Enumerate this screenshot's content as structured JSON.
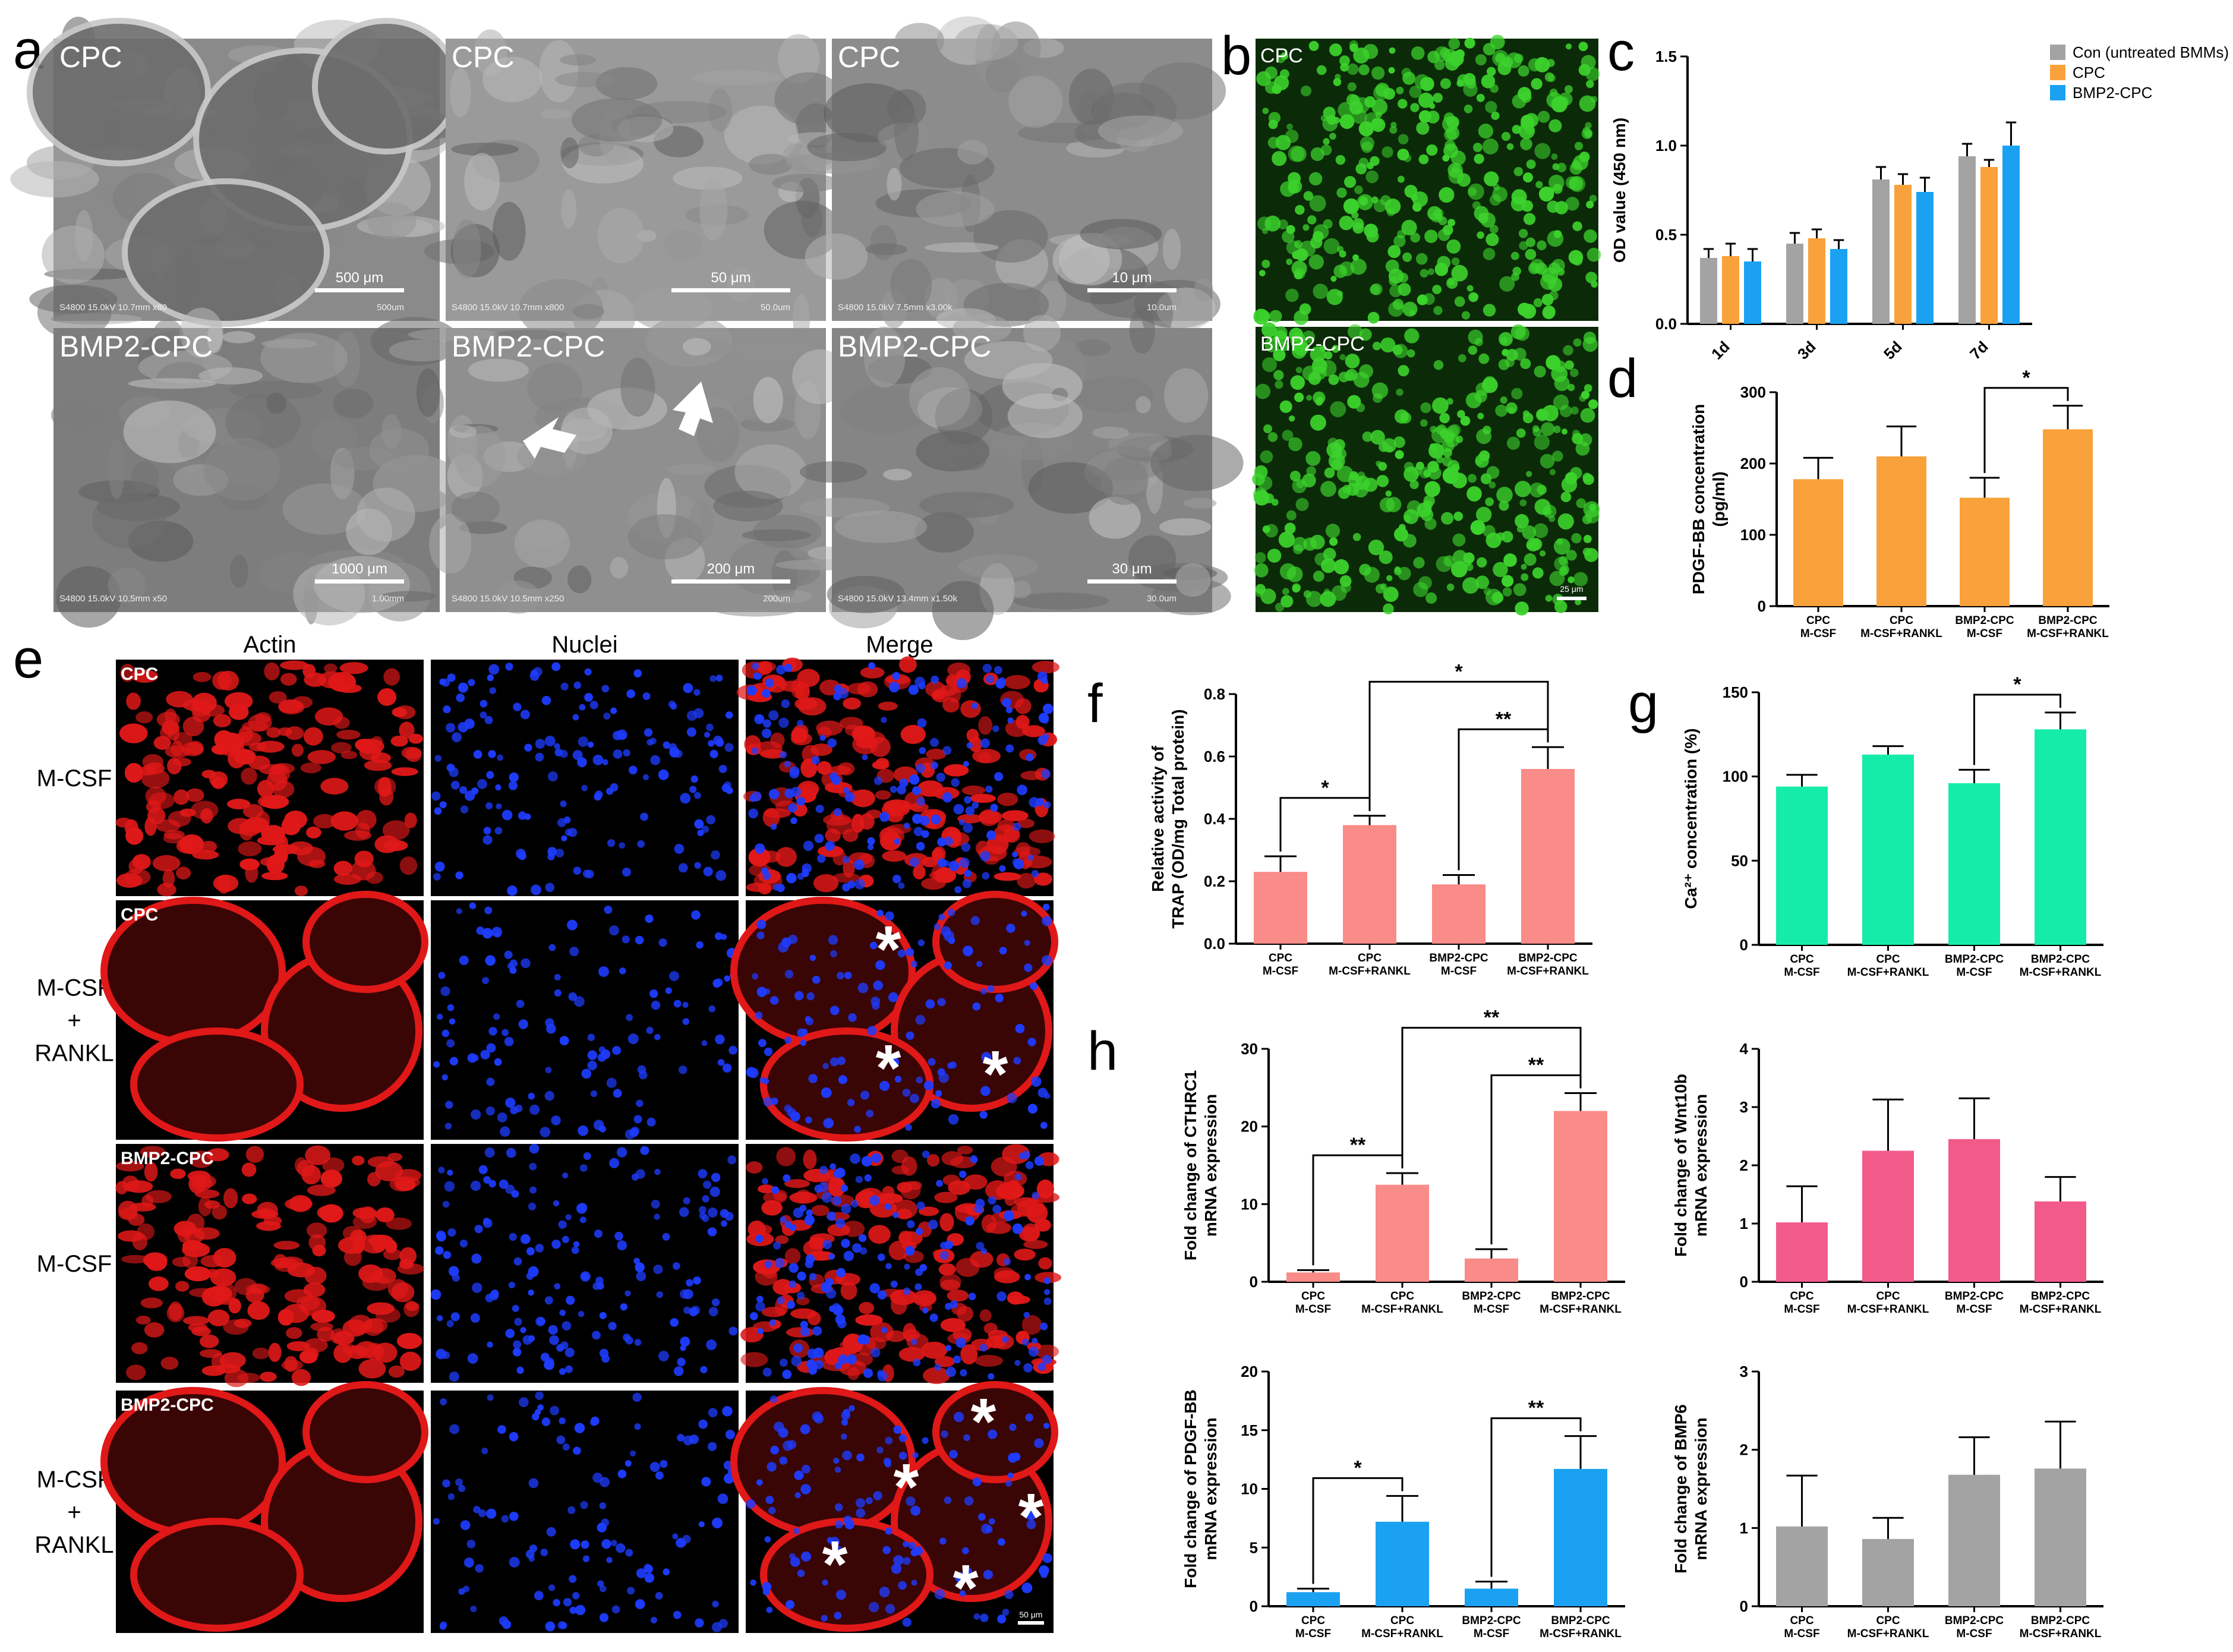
{
  "panels": {
    "a": {
      "letter": "a",
      "tiles": [
        {
          "label": "CPC",
          "scale": "500 μm",
          "meta": "S4800 15.0kV 10.7mm x80",
          "meta_right": "500um",
          "bg": "#8a8a8a"
        },
        {
          "label": "CPC",
          "scale": "50 μm",
          "meta": "S4800 15.0kV 10.7mm x800",
          "meta_right": "50.0um",
          "bg": "#9a9a9a"
        },
        {
          "label": "CPC",
          "scale": "10 μm",
          "meta": "S4800 15.0kV 7.5mm x3.00k",
          "meta_right": "10.0um",
          "bg": "#8c8c8c"
        },
        {
          "label": "BMP2-CPC",
          "scale": "1000 μm",
          "meta": "S4800 15.0kV 10.5mm x50",
          "meta_right": "1.00mm",
          "bg": "#7d7d7d"
        },
        {
          "label": "BMP2-CPC",
          "scale": "200 μm",
          "meta": "S4800 15.0kV 10.5mm x250",
          "meta_right": "200um",
          "bg": "#8f8f8f"
        },
        {
          "label": "BMP2-CPC",
          "scale": "30 μm",
          "meta": "S4800 15.0kV 13.4mm x1.50k",
          "meta_right": "30.0um",
          "bg": "#858585"
        }
      ]
    },
    "b": {
      "letter": "b",
      "tiles": [
        {
          "label": "CPC",
          "bg": "#0b2a08",
          "cell": "#3cd22c"
        },
        {
          "label": "BMP2-CPC",
          "bg": "#0b2a08",
          "cell": "#3cd22c"
        }
      ],
      "scale": "25 μm"
    },
    "e": {
      "letter": "e",
      "columns": [
        "Actin",
        "Nuclei",
        "Merge"
      ],
      "rows": [
        {
          "tag": "CPC",
          "label_lines": [
            "M-CSF"
          ]
        },
        {
          "tag": "CPC",
          "label_lines": [
            "M-CSF",
            "+",
            "RANKL"
          ]
        },
        {
          "tag": "BMP2-CPC",
          "label_lines": [
            "M-CSF"
          ]
        },
        {
          "tag": "BMP2-CPC",
          "label_lines": [
            "M-CSF",
            "+",
            "RANKL"
          ]
        }
      ],
      "colors": {
        "actin": "#e01818",
        "nuclei": "#1e3cff",
        "bg": "#000000"
      },
      "asterisk": "*",
      "scale": "50 μm"
    }
  },
  "chart_data": [
    {
      "id": "c",
      "letter": "c",
      "type": "bar",
      "categories": [
        "1d",
        "3d",
        "5d",
        "7d"
      ],
      "series": [
        {
          "name": "Con (untreated BMMs)",
          "color": "#a3a3a3",
          "values": [
            0.37,
            0.45,
            0.81,
            0.94
          ],
          "errors": [
            0.05,
            0.06,
            0.07,
            0.07
          ]
        },
        {
          "name": "CPC",
          "color": "#f9a13a",
          "values": [
            0.38,
            0.48,
            0.78,
            0.88
          ],
          "errors": [
            0.07,
            0.05,
            0.06,
            0.04
          ]
        },
        {
          "name": "BMP2-CPC",
          "color": "#1ba1f2",
          "values": [
            0.35,
            0.42,
            0.74,
            1.0
          ],
          "errors": [
            0.07,
            0.05,
            0.08,
            0.13
          ]
        }
      ],
      "ylabel": "OD value (450 nm)",
      "ylim": [
        0,
        1.5
      ],
      "yticks": [
        0.0,
        0.5,
        1.0,
        1.5
      ],
      "legend": "top-right",
      "rotate_xlabels": true
    },
    {
      "id": "d",
      "letter": "d",
      "type": "bar",
      "categories": [
        [
          "CPC",
          "M-CSF"
        ],
        [
          "CPC",
          "M-CSF+RANKL"
        ],
        [
          "BMP2-CPC",
          "M-CSF"
        ],
        [
          "BMP2-CPC",
          "M-CSF+RANKL"
        ]
      ],
      "series": [
        {
          "color": "#f9a13a",
          "values": [
            178,
            210,
            152,
            248
          ],
          "errors": [
            30,
            42,
            28,
            33
          ]
        }
      ],
      "ylabel": [
        "PDGF-BB concentration",
        "(pg/ml)"
      ],
      "ylim": [
        0,
        300
      ],
      "yticks": [
        0,
        100,
        200,
        300
      ],
      "sig": [
        {
          "from": 2,
          "to": 3,
          "text": "*",
          "level": 1
        }
      ]
    },
    {
      "id": "f",
      "letter": "f",
      "type": "bar",
      "categories": [
        [
          "CPC",
          "M-CSF"
        ],
        [
          "CPC",
          "M-CSF+RANKL"
        ],
        [
          "BMP2-CPC",
          "M-CSF"
        ],
        [
          "BMP2-CPC",
          "M-CSF+RANKL"
        ]
      ],
      "series": [
        {
          "color": "#f98b88",
          "values": [
            0.23,
            0.38,
            0.19,
            0.56
          ],
          "errors": [
            0.05,
            0.03,
            0.03,
            0.07
          ]
        }
      ],
      "ylabel": [
        "Relative activity of",
        "TRAP (OD/mg Total protein)"
      ],
      "ylim": [
        0,
        0.8
      ],
      "yticks": [
        0.0,
        0.2,
        0.4,
        0.6,
        0.8
      ],
      "sig": [
        {
          "from": 0,
          "to": 1,
          "text": "*",
          "level": 1
        },
        {
          "from": 2,
          "to": 3,
          "text": "**",
          "level": 1
        },
        {
          "from": 1,
          "to": 3,
          "text": "*",
          "level": 2
        }
      ]
    },
    {
      "id": "g",
      "letter": "g",
      "type": "bar",
      "categories": [
        [
          "CPC",
          "M-CSF"
        ],
        [
          "CPC",
          "M-CSF+RANKL"
        ],
        [
          "BMP2-CPC",
          "M-CSF"
        ],
        [
          "BMP2-CPC",
          "M-CSF+RANKL"
        ]
      ],
      "series": [
        {
          "color": "#16ecaa",
          "values": [
            94,
            113,
            96,
            128
          ],
          "errors": [
            7,
            5,
            8,
            10
          ]
        }
      ],
      "ylabel": [
        "Ca²⁺ concentration (%)"
      ],
      "ylim": [
        0,
        150
      ],
      "yticks": [
        0,
        50,
        100,
        150
      ],
      "sig": [
        {
          "from": 2,
          "to": 3,
          "text": "*",
          "level": 1
        }
      ]
    },
    {
      "id": "h1",
      "letter": "h",
      "type": "bar",
      "categories": [
        [
          "CPC",
          "M-CSF"
        ],
        [
          "CPC",
          "M-CSF+RANKL"
        ],
        [
          "BMP2-CPC",
          "M-CSF"
        ],
        [
          "BMP2-CPC",
          "M-CSF+RANKL"
        ]
      ],
      "series": [
        {
          "color": "#f98b88",
          "values": [
            1.2,
            12.5,
            3.0,
            22.0
          ],
          "errors": [
            0.3,
            1.5,
            1.2,
            2.3
          ]
        }
      ],
      "ylabel": [
        "Fold change of CTHRC1",
        "mRNA expression"
      ],
      "ylim": [
        0,
        30
      ],
      "yticks": [
        0,
        10,
        20,
        30
      ],
      "sig": [
        {
          "from": 0,
          "to": 1,
          "text": "**",
          "level": 1
        },
        {
          "from": 2,
          "to": 3,
          "text": "**",
          "level": 1
        },
        {
          "from": 1,
          "to": 3,
          "text": "**",
          "level": 2
        }
      ]
    },
    {
      "id": "h2",
      "letter": "",
      "type": "bar",
      "categories": [
        [
          "CPC",
          "M-CSF"
        ],
        [
          "CPC",
          "M-CSF+RANKL"
        ],
        [
          "BMP2-CPC",
          "M-CSF"
        ],
        [
          "BMP2-CPC",
          "M-CSF+RANKL"
        ]
      ],
      "series": [
        {
          "color": "#f25a8a",
          "values": [
            1.02,
            2.25,
            2.45,
            1.38
          ],
          "errors": [
            0.62,
            0.88,
            0.7,
            0.42
          ]
        }
      ],
      "ylabel": [
        "Fold change of Wnt10b",
        "mRNA expression"
      ],
      "ylim": [
        0,
        4
      ],
      "yticks": [
        0,
        1,
        2,
        3,
        4
      ],
      "sig": []
    },
    {
      "id": "h3",
      "letter": "",
      "type": "bar",
      "categories": [
        [
          "CPC",
          "M-CSF"
        ],
        [
          "CPC",
          "M-CSF+RANKL"
        ],
        [
          "BMP2-CPC",
          "M-CSF"
        ],
        [
          "BMP2-CPC",
          "M-CSF+RANKL"
        ]
      ],
      "series": [
        {
          "color": "#1ba1f2",
          "values": [
            1.2,
            7.2,
            1.5,
            11.7
          ],
          "errors": [
            0.3,
            2.2,
            0.6,
            2.8
          ]
        }
      ],
      "ylabel": [
        "Fold change of PDGF-BB",
        "mRNA expression"
      ],
      "ylim": [
        0,
        20
      ],
      "yticks": [
        0,
        5,
        10,
        15,
        20
      ],
      "sig": [
        {
          "from": 0,
          "to": 1,
          "text": "*",
          "level": 1
        },
        {
          "from": 2,
          "to": 3,
          "text": "**",
          "level": 1
        }
      ]
    },
    {
      "id": "h4",
      "letter": "",
      "type": "bar",
      "categories": [
        [
          "CPC",
          "M-CSF"
        ],
        [
          "CPC",
          "M-CSF+RANKL"
        ],
        [
          "BMP2-CPC",
          "M-CSF"
        ],
        [
          "BMP2-CPC",
          "M-CSF+RANKL"
        ]
      ],
      "series": [
        {
          "color": "#a3a3a3",
          "values": [
            1.02,
            0.86,
            1.68,
            1.76
          ],
          "errors": [
            0.65,
            0.27,
            0.48,
            0.6
          ]
        }
      ],
      "ylabel": [
        "Fold change of BMP6",
        "mRNA expression"
      ],
      "ylim": [
        0,
        3
      ],
      "yticks": [
        0,
        1,
        2,
        3
      ],
      "sig": []
    }
  ]
}
